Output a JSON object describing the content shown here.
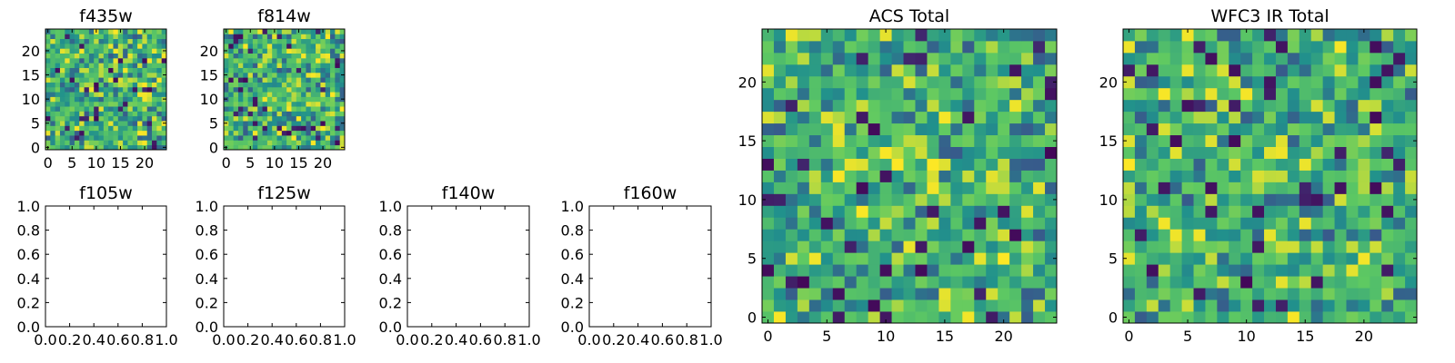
{
  "colormap": [
    "#440154",
    "#3b528b",
    "#21918c",
    "#5ec962",
    "#fde725"
  ],
  "chart_data": [
    {
      "type": "heatmap",
      "title": "f435w",
      "xlim": [
        -0.5,
        24.5
      ],
      "ylim": [
        -0.5,
        24.5
      ],
      "grid_size": 25,
      "xticks": [
        0,
        5,
        10,
        15,
        20
      ],
      "xtick_labels": [
        "0",
        "5",
        "10",
        "15",
        "20"
      ],
      "yticks": [
        0,
        5,
        10,
        15,
        20
      ],
      "ytick_labels": [
        "0",
        "5",
        "10",
        "15",
        "20"
      ],
      "colormap_name": "viridis",
      "value_range": [
        0,
        1
      ],
      "values": [],
      "grid": false
    },
    {
      "type": "heatmap",
      "title": "f814w",
      "xlim": [
        -0.5,
        24.5
      ],
      "ylim": [
        -0.5,
        24.5
      ],
      "grid_size": 25,
      "xticks": [
        0,
        5,
        10,
        15,
        20
      ],
      "xtick_labels": [
        "0",
        "5",
        "10",
        "15",
        "20"
      ],
      "yticks": [
        0,
        5,
        10,
        15,
        20
      ],
      "ytick_labels": [
        "0",
        "5",
        "10",
        "15",
        "20"
      ],
      "colormap_name": "viridis",
      "value_range": [
        0,
        1
      ],
      "values": [],
      "grid": false
    },
    {
      "type": "heatmap",
      "title": "ACS Total",
      "xlim": [
        -0.5,
        24.5
      ],
      "ylim": [
        -0.5,
        24.5
      ],
      "grid_size": 25,
      "xticks": [
        0,
        5,
        10,
        15,
        20
      ],
      "xtick_labels": [
        "0",
        "5",
        "10",
        "15",
        "20"
      ],
      "yticks": [
        0,
        5,
        10,
        15,
        20
      ],
      "ytick_labels": [
        "0",
        "5",
        "10",
        "15",
        "20"
      ],
      "colormap_name": "viridis",
      "value_range": [
        0,
        1
      ],
      "values": [],
      "grid": false
    },
    {
      "type": "heatmap",
      "title": "WFC3 IR Total",
      "xlim": [
        -0.5,
        24.5
      ],
      "ylim": [
        -0.5,
        24.5
      ],
      "grid_size": 25,
      "xticks": [
        0,
        5,
        10,
        15,
        20
      ],
      "xtick_labels": [
        "0",
        "5",
        "10",
        "15",
        "20"
      ],
      "yticks": [
        0,
        5,
        10,
        15,
        20
      ],
      "ytick_labels": [
        "0",
        "5",
        "10",
        "15",
        "20"
      ],
      "colormap_name": "viridis",
      "value_range": [
        0,
        1
      ],
      "values": [],
      "grid": false
    },
    {
      "type": "scatter",
      "title": "f105w",
      "xlim": [
        0,
        1
      ],
      "ylim": [
        0,
        1
      ],
      "xticks": [
        0,
        0.2,
        0.4,
        0.6,
        0.8,
        1
      ],
      "xtick_labels": [
        "0.0",
        "0.2",
        "0.4",
        "0.6",
        "0.8",
        "1.0"
      ],
      "yticks": [
        0,
        0.2,
        0.4,
        0.6,
        0.8,
        1
      ],
      "ytick_labels": [
        "0.0",
        "0.2",
        "0.4",
        "0.6",
        "0.8",
        "1.0"
      ],
      "series": [],
      "grid": false
    },
    {
      "type": "scatter",
      "title": "f125w",
      "xlim": [
        0,
        1
      ],
      "ylim": [
        0,
        1
      ],
      "xticks": [
        0,
        0.2,
        0.4,
        0.6,
        0.8,
        1
      ],
      "xtick_labels": [
        "0.0",
        "0.2",
        "0.4",
        "0.6",
        "0.8",
        "1.0"
      ],
      "yticks": [
        0,
        0.2,
        0.4,
        0.6,
        0.8,
        1
      ],
      "ytick_labels": [
        "0.0",
        "0.2",
        "0.4",
        "0.6",
        "0.8",
        "1.0"
      ],
      "series": [],
      "grid": false
    },
    {
      "type": "scatter",
      "title": "f140w",
      "xlim": [
        0,
        1
      ],
      "ylim": [
        0,
        1
      ],
      "xticks": [
        0,
        0.2,
        0.4,
        0.6,
        0.8,
        1
      ],
      "xtick_labels": [
        "0.0",
        "0.2",
        "0.4",
        "0.6",
        "0.8",
        "1.0"
      ],
      "yticks": [
        0,
        0.2,
        0.4,
        0.6,
        0.8,
        1
      ],
      "ytick_labels": [
        "0.0",
        "0.2",
        "0.4",
        "0.6",
        "0.8",
        "1.0"
      ],
      "series": [],
      "grid": false
    },
    {
      "type": "scatter",
      "title": "f160w",
      "xlim": [
        0,
        1
      ],
      "ylim": [
        0,
        1
      ],
      "xticks": [
        0,
        0.2,
        0.4,
        0.6,
        0.8,
        1
      ],
      "xtick_labels": [
        "0.0",
        "0.2",
        "0.4",
        "0.6",
        "0.8",
        "1.0"
      ],
      "yticks": [
        0,
        0.2,
        0.4,
        0.6,
        0.8,
        1
      ],
      "ytick_labels": [
        "0.0",
        "0.2",
        "0.4",
        "0.6",
        "0.8",
        "1.0"
      ],
      "series": [],
      "grid": false
    }
  ]
}
